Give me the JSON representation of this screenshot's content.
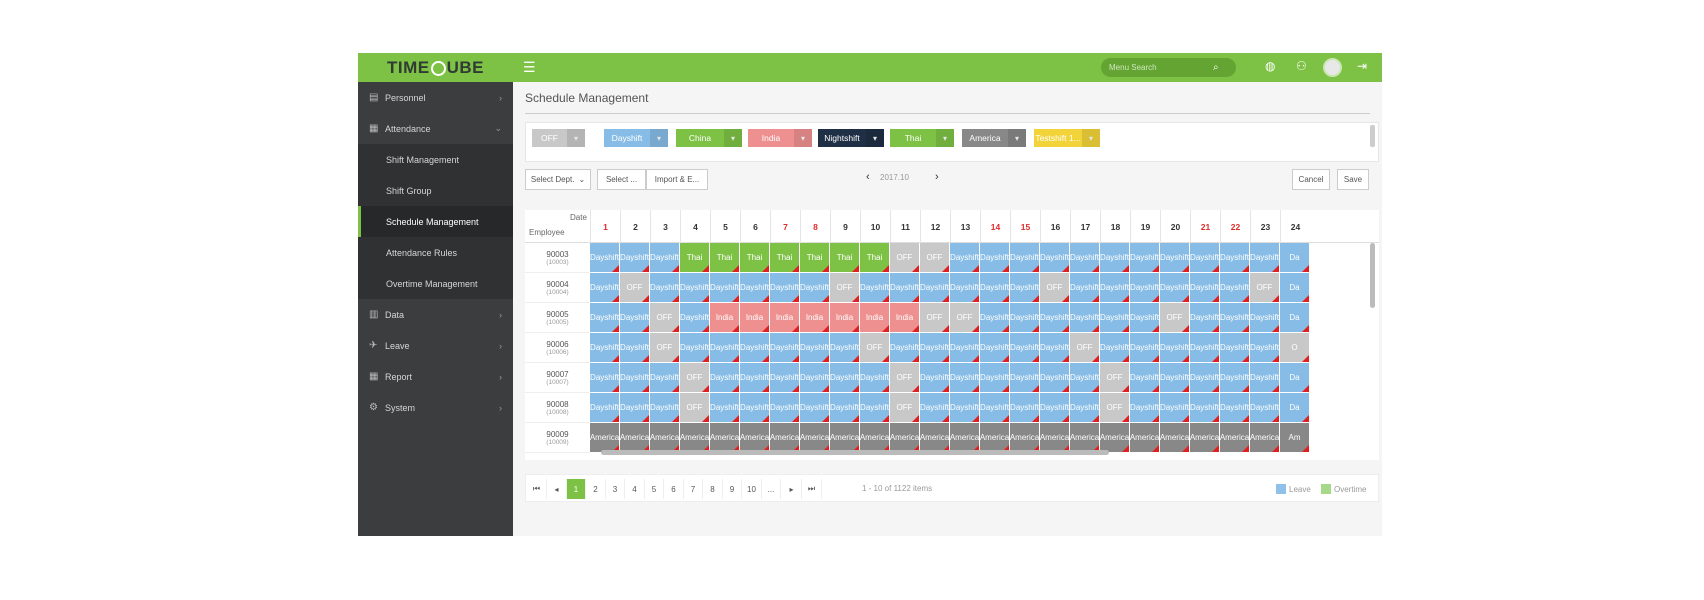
{
  "app": {
    "logo": "TIMECUBE",
    "logo_left": "TIME",
    "logo_right": "UBE"
  },
  "topbar": {
    "search_placeholder": "Menu Search"
  },
  "sidebar": {
    "items": [
      {
        "label": "Personnel",
        "icon": "personnel-icon"
      },
      {
        "label": "Attendance",
        "icon": "attendance-icon"
      },
      {
        "label": "Shift Management"
      },
      {
        "label": "Shift Group"
      },
      {
        "label": "Schedule Management"
      },
      {
        "label": "Attendance Rules"
      },
      {
        "label": "Overtime Management"
      },
      {
        "label": "Data",
        "icon": "data-icon"
      },
      {
        "label": "Leave",
        "icon": "leave-icon"
      },
      {
        "label": "Report",
        "icon": "report-icon"
      },
      {
        "label": "System",
        "icon": "system-icon"
      }
    ]
  },
  "page": {
    "title": "Schedule Management"
  },
  "shifts": [
    {
      "label": "OFF",
      "color": "#c8c8c8"
    },
    {
      "label": "Dayshift",
      "color": "#86bce6"
    },
    {
      "label": "China",
      "color": "#7dc145"
    },
    {
      "label": "India",
      "color": "#ef9090"
    },
    {
      "label": "Nightshift",
      "color": "#1f2f45"
    },
    {
      "label": "Thai",
      "color": "#7dc145"
    },
    {
      "label": "America",
      "color": "#888888"
    },
    {
      "label": "Testshift 1...",
      "color": "#f2d33a"
    }
  ],
  "toolbar": {
    "dept": "Select Dept.",
    "select": "Select ...",
    "import": "Import & E...",
    "month": "2017.10",
    "cancel": "Cancel",
    "save": "Save"
  },
  "grid": {
    "corner_date": "Date",
    "corner_employee": "Employee",
    "days": [
      "1",
      "2",
      "3",
      "4",
      "5",
      "6",
      "7",
      "8",
      "9",
      "10",
      "11",
      "12",
      "13",
      "14",
      "15",
      "16",
      "17",
      "18",
      "19",
      "20",
      "21",
      "22",
      "23",
      "24"
    ],
    "red_days": [
      "1",
      "7",
      "8",
      "14",
      "15",
      "21",
      "22"
    ],
    "rows": [
      {
        "emp": "90003",
        "sub": "(10003)",
        "cells": [
          "Dayshift",
          "Dayshift",
          "Dayshift",
          "Thai",
          "Thai",
          "Thai",
          "Thai",
          "Thai",
          "Thai",
          "Thai",
          "OFF",
          "OFF",
          "Dayshift",
          "Dayshift",
          "Dayshift",
          "Dayshift",
          "Dayshift",
          "Dayshift",
          "Dayshift",
          "Dayshift",
          "Dayshift",
          "Dayshift",
          "Dayshift",
          "Da"
        ]
      },
      {
        "emp": "90004",
        "sub": "(10004)",
        "cells": [
          "Dayshift",
          "OFF",
          "Dayshift",
          "Dayshift",
          "Dayshift",
          "Dayshift",
          "Dayshift",
          "Dayshift",
          "OFF",
          "Dayshift",
          "Dayshift",
          "Dayshift",
          "Dayshift",
          "Dayshift",
          "Dayshift",
          "OFF",
          "Dayshift",
          "Dayshift",
          "Dayshift",
          "Dayshift",
          "Dayshift",
          "Dayshift",
          "OFF",
          "Da"
        ]
      },
      {
        "emp": "90005",
        "sub": "(10005)",
        "cells": [
          "Dayshift",
          "Dayshift",
          "OFF",
          "Dayshift",
          "India",
          "India",
          "India",
          "India",
          "India",
          "India",
          "India",
          "OFF",
          "OFF",
          "Dayshift",
          "Dayshift",
          "Dayshift",
          "Dayshift",
          "Dayshift",
          "Dayshift",
          "OFF",
          "Dayshift",
          "Dayshift",
          "Dayshift",
          "Da"
        ]
      },
      {
        "emp": "90006",
        "sub": "(10006)",
        "cells": [
          "Dayshift",
          "Dayshift",
          "OFF",
          "Dayshift",
          "Dayshift",
          "Dayshift",
          "Dayshift",
          "Dayshift",
          "Dayshift",
          "OFF",
          "Dayshift",
          "Dayshift",
          "Dayshift",
          "Dayshift",
          "Dayshift",
          "Dayshift",
          "OFF",
          "Dayshift",
          "Dayshift",
          "Dayshift",
          "Dayshift",
          "Dayshift",
          "Dayshift",
          "O"
        ]
      },
      {
        "emp": "90007",
        "sub": "(10007)",
        "cells": [
          "Dayshift",
          "Dayshift",
          "Dayshift",
          "OFF",
          "Dayshift",
          "Dayshift",
          "Dayshift",
          "Dayshift",
          "Dayshift",
          "Dayshift",
          "OFF",
          "Dayshift",
          "Dayshift",
          "Dayshift",
          "Dayshift",
          "Dayshift",
          "Dayshift",
          "OFF",
          "Dayshift",
          "Dayshift",
          "Dayshift",
          "Dayshift",
          "Dayshift",
          "Da"
        ]
      },
      {
        "emp": "90008",
        "sub": "(10008)",
        "cells": [
          "Dayshift",
          "Dayshift",
          "Dayshift",
          "OFF",
          "Dayshift",
          "Dayshift",
          "Dayshift",
          "Dayshift",
          "Dayshift",
          "Dayshift",
          "OFF",
          "Dayshift",
          "Dayshift",
          "Dayshift",
          "Dayshift",
          "Dayshift",
          "Dayshift",
          "OFF",
          "Dayshift",
          "Dayshift",
          "Dayshift",
          "Dayshift",
          "Dayshift",
          "Da"
        ]
      },
      {
        "emp": "90009",
        "sub": "(10009)",
        "cells": [
          "America",
          "America",
          "America",
          "America",
          "America",
          "America",
          "America",
          "America",
          "America",
          "America",
          "America",
          "America",
          "America",
          "America",
          "America",
          "America",
          "America",
          "America",
          "America",
          "America",
          "America",
          "America",
          "America",
          "Am"
        ]
      }
    ]
  },
  "pager": {
    "pages": [
      "1",
      "2",
      "3",
      "4",
      "5",
      "6",
      "7",
      "8",
      "9",
      "10",
      "..."
    ],
    "info": "1 - 10 of 1122 items",
    "legend_leave": "Leave",
    "legend_overtime": "Overtime",
    "leave_color": "#8fc1ea",
    "overtime_color": "#a6d88a"
  }
}
